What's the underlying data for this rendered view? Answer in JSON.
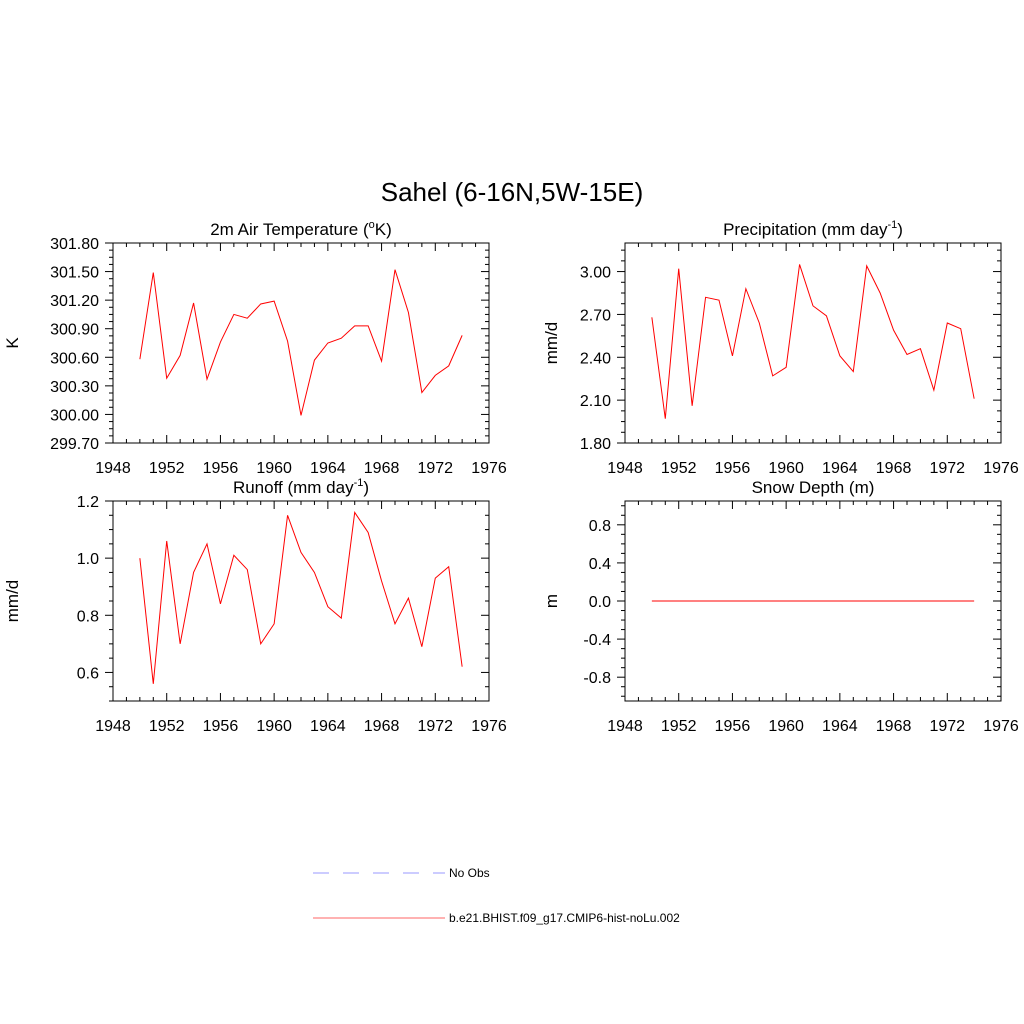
{
  "figure": {
    "title": "Sahel (6-16N,5W-15E)"
  },
  "colors": {
    "model_line": "#ff0000",
    "obs_line": "#9999ff",
    "axes": "#000000"
  },
  "chart_data": [
    {
      "id": "tas",
      "type": "line",
      "title": "2m Air Temperature (",
      "title_sup": "o",
      "title_after": "K)",
      "xlabel": "",
      "ylabel": "K",
      "xlim": [
        1948,
        1976
      ],
      "ylim": [
        299.7,
        301.8
      ],
      "xticks": [
        1948,
        1952,
        1956,
        1960,
        1964,
        1968,
        1972,
        1976
      ],
      "yticks": [
        "299.70",
        "300.00",
        "300.30",
        "300.60",
        "300.90",
        "301.20",
        "301.50",
        "301.80"
      ],
      "ytick_values": [
        299.7,
        300.0,
        300.3,
        300.6,
        300.9,
        301.2,
        301.5,
        301.8
      ],
      "minor_per_major_y": 3,
      "x": [
        1950,
        1951,
        1952,
        1953,
        1954,
        1955,
        1956,
        1957,
        1958,
        1959,
        1960,
        1961,
        1962,
        1963,
        1964,
        1965,
        1966,
        1967,
        1968,
        1969,
        1970,
        1971,
        1972,
        1973,
        1974
      ],
      "series": [
        {
          "name": "b.e21.BHIST.f09_g17.CMIP6-hist-noLu.002",
          "values": [
            300.58,
            301.49,
            300.38,
            300.62,
            301.17,
            300.37,
            300.76,
            301.05,
            301.01,
            301.16,
            301.19,
            300.77,
            299.99,
            300.57,
            300.75,
            300.8,
            300.93,
            300.93,
            300.56,
            301.52,
            301.07,
            300.23,
            300.41,
            300.51,
            300.83
          ]
        }
      ]
    },
    {
      "id": "pr",
      "type": "line",
      "title": "Precipitation (mm day",
      "title_sup": "-1",
      "title_after": ")",
      "xlabel": "",
      "ylabel": "mm/d",
      "xlim": [
        1948,
        1976
      ],
      "ylim": [
        1.8,
        3.2
      ],
      "xticks": [
        1948,
        1952,
        1956,
        1960,
        1964,
        1968,
        1972,
        1976
      ],
      "yticks": [
        "1.80",
        "2.10",
        "2.40",
        "2.70",
        "3.00"
      ],
      "ytick_values": [
        1.8,
        2.1,
        2.4,
        2.7,
        3.0
      ],
      "minor_per_major_y": 3,
      "x": [
        1950,
        1951,
        1952,
        1953,
        1954,
        1955,
        1956,
        1957,
        1958,
        1959,
        1960,
        1961,
        1962,
        1963,
        1964,
        1965,
        1966,
        1967,
        1968,
        1969,
        1970,
        1971,
        1972,
        1973,
        1974
      ],
      "series": [
        {
          "name": "b.e21.BHIST.f09_g17.CMIP6-hist-noLu.002",
          "values": [
            2.68,
            1.97,
            3.02,
            2.06,
            2.82,
            2.8,
            2.41,
            2.88,
            2.64,
            2.27,
            2.33,
            3.05,
            2.76,
            2.69,
            2.41,
            2.3,
            3.04,
            2.85,
            2.59,
            2.42,
            2.46,
            2.17,
            2.64,
            2.6,
            2.11
          ]
        }
      ]
    },
    {
      "id": "runoff",
      "type": "line",
      "title": "Runoff (mm day",
      "title_sup": "-1",
      "title_after": ")",
      "xlabel": "",
      "ylabel": "mm/d",
      "xlim": [
        1948,
        1976
      ],
      "ylim": [
        0.5,
        1.2
      ],
      "xticks": [
        1948,
        1952,
        1956,
        1960,
        1964,
        1968,
        1972,
        1976
      ],
      "yticks": [
        "0.6",
        "0.8",
        "1.0",
        "1.2"
      ],
      "ytick_values": [
        0.6,
        0.8,
        1.0,
        1.2
      ],
      "minor_per_major_y": 3,
      "x": [
        1950,
        1951,
        1952,
        1953,
        1954,
        1955,
        1956,
        1957,
        1958,
        1959,
        1960,
        1961,
        1962,
        1963,
        1964,
        1965,
        1966,
        1967,
        1968,
        1969,
        1970,
        1971,
        1972,
        1973,
        1974
      ],
      "series": [
        {
          "name": "b.e21.BHIST.f09_g17.CMIP6-hist-noLu.002",
          "values": [
            1.0,
            0.56,
            1.06,
            0.7,
            0.95,
            1.05,
            0.84,
            1.01,
            0.96,
            0.7,
            0.77,
            1.15,
            1.02,
            0.95,
            0.83,
            0.79,
            1.16,
            1.09,
            0.92,
            0.77,
            0.86,
            0.69,
            0.93,
            0.97,
            0.62
          ]
        }
      ]
    },
    {
      "id": "snowdp",
      "type": "line",
      "title": "Snow Depth (m)",
      "title_sup": "",
      "title_after": "",
      "xlabel": "",
      "ylabel": "m",
      "xlim": [
        1948,
        1976
      ],
      "ylim": [
        -1.05,
        1.05
      ],
      "xticks": [
        1948,
        1952,
        1956,
        1960,
        1964,
        1968,
        1972,
        1976
      ],
      "yticks": [
        "-0.8",
        "-0.4",
        "0.0",
        "0.4",
        "0.8"
      ],
      "ytick_values": [
        -0.8,
        -0.4,
        0.0,
        0.4,
        0.8
      ],
      "minor_per_major_y": 3,
      "x": [
        1950,
        1951,
        1952,
        1953,
        1954,
        1955,
        1956,
        1957,
        1958,
        1959,
        1960,
        1961,
        1962,
        1963,
        1964,
        1965,
        1966,
        1967,
        1968,
        1969,
        1970,
        1971,
        1972,
        1973,
        1974
      ],
      "series": [
        {
          "name": "b.e21.BHIST.f09_g17.CMIP6-hist-noLu.002",
          "values": [
            0,
            0,
            0,
            0,
            0,
            0,
            0,
            0,
            0,
            0,
            0,
            0,
            0,
            0,
            0,
            0,
            0,
            0,
            0,
            0,
            0,
            0,
            0,
            0,
            0
          ]
        }
      ]
    }
  ],
  "legend": {
    "items": [
      {
        "label": "No Obs",
        "style": "dashed",
        "color": "#9999ff"
      },
      {
        "label": "b.e21.BHIST.f09_g17.CMIP6-hist-noLu.002",
        "style": "solid",
        "color": "#ff6666"
      }
    ]
  }
}
